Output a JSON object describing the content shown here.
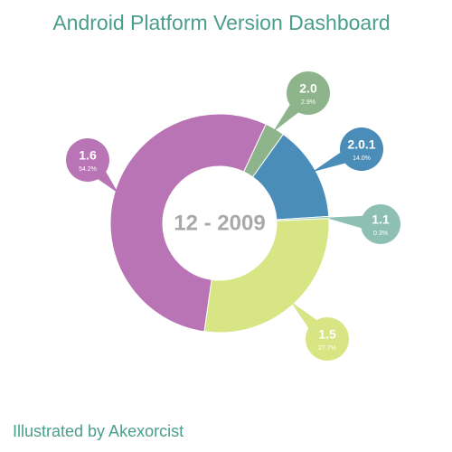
{
  "chart_data": {
    "type": "donut",
    "title": "Android Platform Version Dashboard",
    "center_label": "12 - 2009",
    "categories": [
      "2.0",
      "2.0.1",
      "1.1",
      "1.5",
      "1.6"
    ],
    "values": [
      2.9,
      14.0,
      0.3,
      27.7,
      54.2
    ],
    "value_labels": [
      "2.9%",
      "14.0%",
      "0.3%",
      "27.7%",
      "54.2%"
    ],
    "colors": [
      "#8db48a",
      "#4a8db8",
      "#8dbfb2",
      "#d8e585",
      "#b874b4"
    ],
    "credit": "Illustrated by Akexorcist"
  }
}
